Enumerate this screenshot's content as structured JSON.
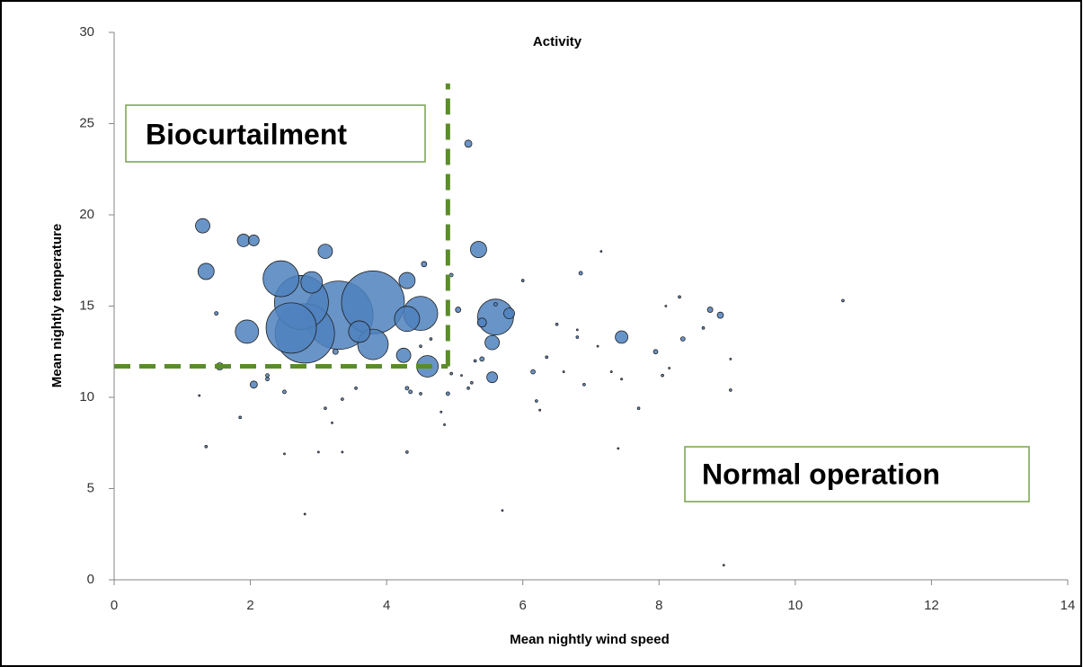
{
  "chart_data": {
    "type": "bubble",
    "title": "Activity",
    "xlabel": "Mean nightly wind speed",
    "ylabel": "Mean nightly temperature",
    "xlim": [
      0,
      14
    ],
    "xticks": [
      0,
      2,
      4,
      6,
      8,
      10,
      12,
      14
    ],
    "ylim": [
      0,
      30
    ],
    "yticks": [
      0,
      5,
      10,
      15,
      20,
      25,
      30
    ],
    "color": "#4f81bd",
    "x": [
      3.3,
      3.8,
      2.8,
      2.75,
      2.6,
      2.45,
      4.5,
      5.6,
      4.3,
      3.8,
      2.9,
      3.6,
      1.95,
      4.6,
      3.1,
      5.35,
      1.3,
      1.35,
      1.9,
      2.05,
      4.3,
      4.25,
      5.55,
      5.55,
      7.45,
      5.2,
      4.55,
      5.8,
      5.4,
      2.05,
      3.25,
      1.55,
      1.5,
      1.25,
      1.35,
      1.85,
      2.25,
      2.25,
      2.3,
      2.5,
      2.5,
      2.8,
      3.0,
      3.1,
      3.2,
      3.35,
      3.35,
      3.55,
      4.3,
      4.3,
      4.35,
      4.5,
      4.5,
      4.65,
      4.8,
      4.85,
      4.9,
      4.95,
      4.95,
      5.05,
      5.1,
      5.2,
      5.25,
      5.3,
      5.4,
      5.6,
      5.7,
      6.0,
      6.15,
      6.2,
      6.25,
      6.35,
      6.5,
      6.6,
      6.8,
      6.8,
      6.85,
      6.9,
      7.1,
      7.15,
      7.3,
      7.4,
      7.45,
      7.7,
      7.95,
      8.05,
      8.1,
      8.15,
      8.3,
      8.35,
      8.65,
      8.75,
      8.9,
      8.95,
      9.05,
      9.05,
      10.7
    ],
    "values": [
      14.5,
      15.2,
      13.5,
      15.2,
      13.8,
      16.5,
      14.6,
      14.4,
      14.3,
      12.9,
      16.3,
      13.6,
      13.6,
      11.7,
      18.0,
      18.1,
      19.4,
      16.9,
      18.6,
      18.6,
      16.4,
      12.3,
      13.0,
      11.1,
      13.3,
      23.9,
      17.3,
      14.6,
      14.1,
      10.7,
      12.5,
      11.7,
      14.6,
      10.1,
      7.3,
      8.9,
      11.0,
      11.2,
      11.7,
      10.3,
      6.9,
      3.6,
      7.0,
      9.4,
      8.6,
      9.9,
      7.0,
      10.5,
      10.5,
      7.0,
      10.3,
      12.8,
      10.2,
      13.2,
      9.2,
      8.5,
      10.2,
      16.7,
      11.3,
      14.8,
      11.2,
      10.5,
      10.8,
      12.0,
      12.1,
      15.1,
      3.8,
      16.4,
      11.4,
      9.8,
      9.3,
      12.2,
      14.0,
      11.4,
      13.3,
      13.7,
      16.8,
      10.7,
      12.8,
      18.0,
      11.4,
      7.2,
      11.0,
      9.4,
      12.5,
      11.2,
      15.0,
      11.6,
      15.5,
      13.2,
      13.8,
      14.8,
      14.5,
      0.8,
      12.1,
      10.4,
      15.3
    ],
    "sizes": [
      1444,
      1225,
      1089,
      900,
      784,
      400,
      361,
      400,
      196,
      289,
      144,
      144,
      169,
      144,
      64,
      81,
      64,
      81,
      49,
      36,
      81,
      64,
      64,
      36,
      49,
      16,
      9,
      36,
      25,
      16,
      9,
      16,
      4,
      1,
      2,
      2,
      4,
      4,
      4,
      4,
      1,
      1,
      1,
      2,
      1,
      2,
      1,
      2,
      4,
      2,
      4,
      2,
      2,
      2,
      1,
      1,
      4,
      4,
      2,
      9,
      1,
      2,
      2,
      2,
      6,
      4,
      1,
      2,
      6,
      2,
      1,
      2,
      2,
      1,
      2,
      1,
      4,
      2,
      1,
      1,
      1,
      1,
      1,
      2,
      6,
      2,
      1,
      1,
      2,
      6,
      2,
      9,
      12,
      1,
      1,
      2,
      2
    ],
    "thresholds": {
      "wind": 4.9,
      "temperature": 11.7,
      "wind_line_top": 27.2,
      "color": "#5b8c2a"
    },
    "annotations": [
      "Biocurtailment",
      "Normal operation"
    ]
  }
}
